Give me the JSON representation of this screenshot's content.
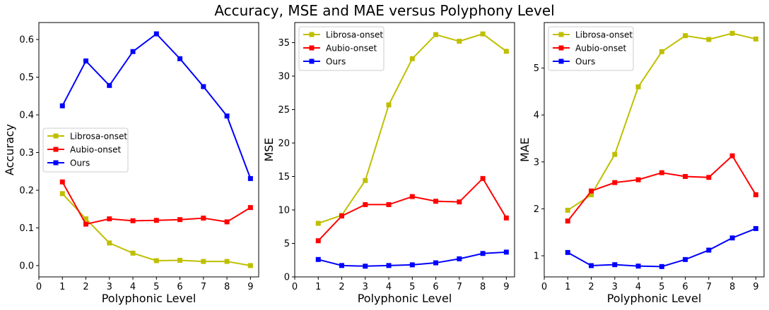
{
  "figure_title": "Accuracy, MSE and MAE versus Polyphony Level",
  "chart_data": [
    {
      "type": "line",
      "title": "",
      "xlabel": "Polyphonic Level",
      "ylabel": "Accuracy",
      "x": [
        1,
        2,
        3,
        4,
        5,
        6,
        7,
        8,
        9
      ],
      "xticks": [
        0,
        1,
        2,
        3,
        4,
        5,
        6,
        7,
        8,
        9
      ],
      "yticks": [
        "0.0",
        "0.1",
        "0.2",
        "0.3",
        "0.4",
        "0.5",
        "0.6"
      ],
      "ytick_values": [
        0.0,
        0.1,
        0.2,
        0.3,
        0.4,
        0.5,
        0.6
      ],
      "xlim": [
        0,
        9.35
      ],
      "ylim": [
        -0.03,
        0.645
      ],
      "legend_position": "center-left",
      "series": [
        {
          "name": "Librosa-onset",
          "color": "#bfbf00",
          "values": [
            0.191,
            0.124,
            0.06,
            0.033,
            0.013,
            0.014,
            0.011,
            0.011,
            0.0
          ]
        },
        {
          "name": "Aubio-onset",
          "color": "#ff0000",
          "values": [
            0.222,
            0.11,
            0.124,
            0.119,
            0.12,
            0.122,
            0.126,
            0.116,
            0.154
          ]
        },
        {
          "name": "Ours",
          "color": "#0000ff",
          "values": [
            0.424,
            0.543,
            0.478,
            0.568,
            0.615,
            0.549,
            0.475,
            0.397,
            0.231
          ]
        }
      ]
    },
    {
      "type": "line",
      "title": "",
      "xlabel": "Polyphonic Level",
      "ylabel": "MSE",
      "x": [
        1,
        2,
        3,
        4,
        5,
        6,
        7,
        8,
        9
      ],
      "xticks": [
        0,
        1,
        2,
        3,
        4,
        5,
        6,
        7,
        8,
        9
      ],
      "yticks": [
        "0",
        "5",
        "10",
        "15",
        "20",
        "25",
        "30",
        "35"
      ],
      "ytick_values": [
        0,
        5,
        10,
        15,
        20,
        25,
        30,
        35
      ],
      "xlim": [
        0,
        9.35
      ],
      "ylim": [
        0,
        38
      ],
      "legend_position": "top-left",
      "series": [
        {
          "name": "Librosa-onset",
          "color": "#bfbf00",
          "values": [
            8.0,
            9.2,
            14.4,
            25.7,
            32.6,
            36.2,
            35.2,
            36.3,
            33.7
          ]
        },
        {
          "name": "Aubio-onset",
          "color": "#ff0000",
          "values": [
            5.4,
            9.1,
            10.8,
            10.8,
            12.0,
            11.3,
            11.2,
            14.7,
            8.8
          ]
        },
        {
          "name": "Ours",
          "color": "#0000ff",
          "values": [
            2.6,
            1.7,
            1.6,
            1.7,
            1.8,
            2.1,
            2.7,
            3.5,
            3.7
          ]
        }
      ]
    },
    {
      "type": "line",
      "title": "",
      "xlabel": "Polyphonic Level",
      "ylabel": "MAE",
      "x": [
        1,
        2,
        3,
        4,
        5,
        6,
        7,
        8,
        9
      ],
      "xticks": [
        0,
        1,
        2,
        3,
        4,
        5,
        6,
        7,
        8,
        9
      ],
      "yticks": [
        "1",
        "2",
        "3",
        "4",
        "5"
      ],
      "ytick_values": [
        1,
        2,
        3,
        4,
        5
      ],
      "xlim": [
        0,
        9.35
      ],
      "ylim": [
        0.55,
        5.97
      ],
      "legend_position": "top-left",
      "series": [
        {
          "name": "Librosa-onset",
          "color": "#bfbf00",
          "values": [
            1.97,
            2.3,
            3.16,
            4.6,
            5.35,
            5.69,
            5.61,
            5.74,
            5.62
          ]
        },
        {
          "name": "Aubio-onset",
          "color": "#ff0000",
          "values": [
            1.74,
            2.38,
            2.56,
            2.62,
            2.77,
            2.69,
            2.67,
            3.13,
            2.3
          ]
        },
        {
          "name": "Ours",
          "color": "#0000ff",
          "values": [
            1.07,
            0.79,
            0.81,
            0.78,
            0.77,
            0.92,
            1.12,
            1.38,
            1.58
          ]
        }
      ]
    }
  ]
}
